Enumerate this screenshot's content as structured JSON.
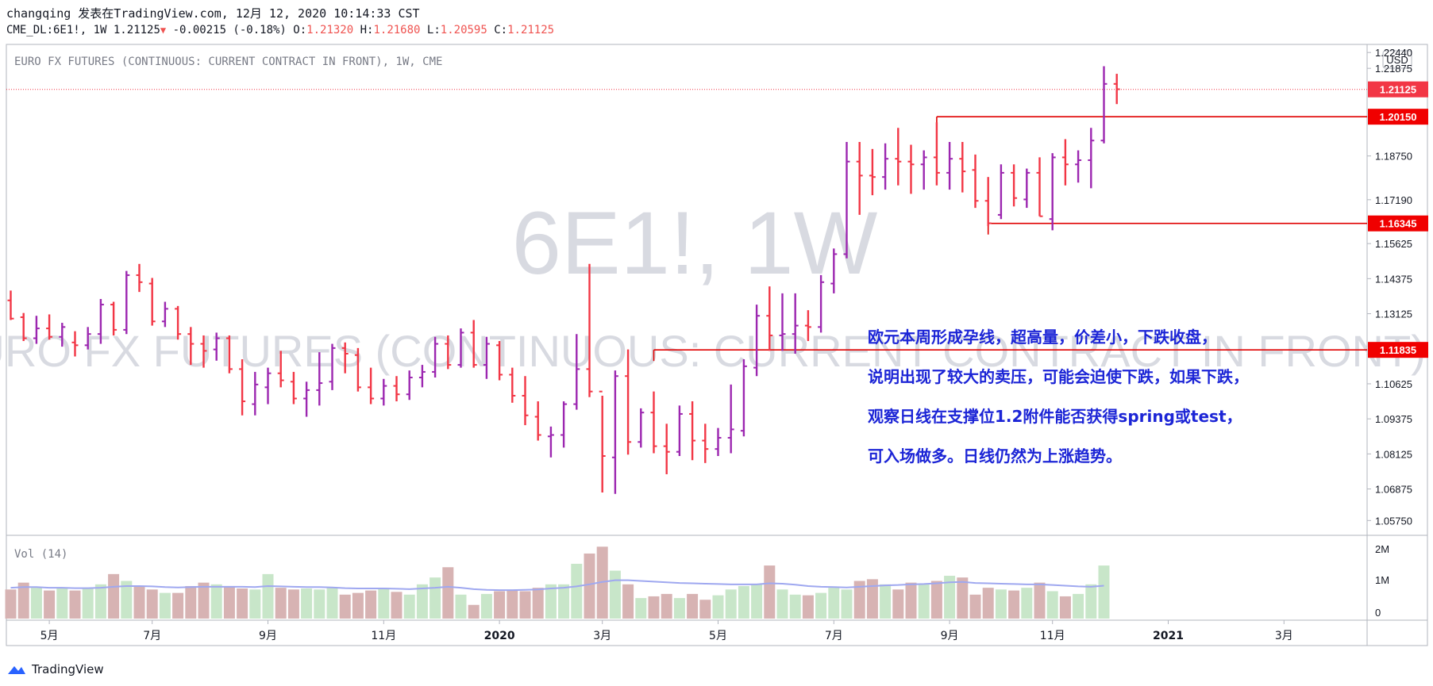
{
  "header": {
    "publish_line": "changqing 发表在TradingView.com, 12月 12, 2020 10:14:33 CST",
    "symbol": "CME_DL:6E1!, 1W",
    "last": "1.21125",
    "change": "-0.00215 (-0.18%)",
    "o_label": "O:",
    "o_value": "1.21320",
    "h_label": "H:",
    "h_value": "1.21680",
    "l_label": "L:",
    "l_value": "1.20595",
    "c_label": "C:",
    "c_value": "1.21125"
  },
  "chart_title": "EURO FX FUTURES (CONTINUOUS: CURRENT CONTRACT IN FRONT), 1W, CME",
  "watermark": {
    "symbol": "6E1!, 1W",
    "desc": "EURO FX FUTURES (CONTINUOUS: CURRENT CONTRACT IN FRONT)"
  },
  "currency": "USD",
  "annotation": [
    "欧元本周形成孕线，超高量，价差小，下跌收盘，",
    "说明出现了较大的卖压，可能会迫使下跌，如果下跌，",
    "观察日线在支撑位1.2附件能否获得spring或test，",
    "可入场做多。日线仍然为上涨趋势。"
  ],
  "vol_label": "Vol (14)",
  "vol_ticks": [
    "2M",
    "1M",
    "0"
  ],
  "brand": "TradingView",
  "colors": {
    "up": "#9c27b0",
    "down": "#f23645",
    "level": "#e00000",
    "vol_up": "#c8e6c9",
    "vol_down": "#d7b3b3",
    "ma": "#9fa8f0"
  },
  "chart_data": {
    "type": "bar",
    "price_ticks": [
      "1.22440",
      "1.21875",
      "1.20150",
      "1.18750",
      "1.17190",
      "1.15625",
      "1.14375",
      "1.13125",
      "1.11835",
      "1.10625",
      "1.09375",
      "1.08125",
      "1.06875",
      "1.05750"
    ],
    "price_tick_values": [
      1.2244,
      1.21875,
      1.2015,
      1.1875,
      1.1719,
      1.15625,
      1.14375,
      1.13125,
      1.11835,
      1.10625,
      1.09375,
      1.08125,
      1.06875,
      1.0575
    ],
    "price_labels": [
      {
        "text": "1.21125",
        "value": 1.21125,
        "style": "last"
      },
      {
        "text": "1.20150",
        "value": 1.2015,
        "style": "level"
      },
      {
        "text": "1.16345",
        "value": 1.16345,
        "style": "level"
      },
      {
        "text": "1.11835",
        "value": 1.11835,
        "style": "level"
      }
    ],
    "levels": [
      {
        "value": 1.2015,
        "from_week": 72
      },
      {
        "value": 1.16345,
        "from_week": 76
      },
      {
        "value": 1.11835,
        "from_week": 50
      }
    ],
    "last_price": 1.21125,
    "x_ticks": [
      {
        "label": "5月",
        "week": 3
      },
      {
        "label": "7月",
        "week": 11
      },
      {
        "label": "9月",
        "week": 20
      },
      {
        "label": "11月",
        "week": 29
      },
      {
        "label": "2020",
        "week": 38
      },
      {
        "label": "3月",
        "week": 46
      },
      {
        "label": "5月",
        "week": 55
      },
      {
        "label": "7月",
        "week": 64
      },
      {
        "label": "9月",
        "week": 73
      },
      {
        "label": "11月",
        "week": 81
      },
      {
        "label": "2021",
        "week": 90
      },
      {
        "label": "3月",
        "week": 99
      }
    ],
    "ohlc": [
      [
        1.136,
        1.1395,
        1.129,
        1.1295
      ],
      [
        1.13,
        1.1315,
        1.1215,
        1.1225
      ],
      [
        1.1225,
        1.1305,
        1.1205,
        1.126
      ],
      [
        1.126,
        1.131,
        1.122,
        1.123
      ],
      [
        1.123,
        1.128,
        1.1195,
        1.1265
      ],
      [
        1.121,
        1.125,
        1.116,
        1.12
      ],
      [
        1.12,
        1.1265,
        1.1185,
        1.124
      ],
      [
        1.124,
        1.1365,
        1.1205,
        1.1345
      ],
      [
        1.1345,
        1.1355,
        1.1235,
        1.1255
      ],
      [
        1.1255,
        1.1465,
        1.124,
        1.145
      ],
      [
        1.145,
        1.149,
        1.139,
        1.1425
      ],
      [
        1.142,
        1.144,
        1.127,
        1.1285
      ],
      [
        1.1285,
        1.1355,
        1.1265,
        1.133
      ],
      [
        1.133,
        1.134,
        1.122,
        1.124
      ],
      [
        1.124,
        1.1265,
        1.113,
        1.1205
      ],
      [
        1.1205,
        1.1235,
        1.112,
        1.118
      ],
      [
        1.1185,
        1.1245,
        1.1145,
        1.1225
      ],
      [
        1.1225,
        1.1235,
        1.11,
        1.1115
      ],
      [
        1.1115,
        1.115,
        1.095,
        1.1
      ],
      [
        1.099,
        1.1105,
        1.095,
        1.106
      ],
      [
        1.105,
        1.112,
        1.099,
        1.11
      ],
      [
        1.11,
        1.118,
        1.105,
        1.1075
      ],
      [
        1.107,
        1.1105,
        1.099,
        1.101
      ],
      [
        1.101,
        1.107,
        1.0945,
        1.104
      ],
      [
        1.104,
        1.1175,
        1.0985,
        1.1065
      ],
      [
        1.107,
        1.1205,
        1.104,
        1.119
      ],
      [
        1.119,
        1.121,
        1.11,
        1.117
      ],
      [
        1.1165,
        1.119,
        1.1035,
        1.105
      ],
      [
        1.105,
        1.112,
        1.099,
        1.101
      ],
      [
        1.101,
        1.108,
        1.0985,
        1.1055
      ],
      [
        1.1055,
        1.109,
        1.1,
        1.1025
      ],
      [
        1.1025,
        1.111,
        1.1005,
        1.1085
      ],
      [
        1.1085,
        1.113,
        1.105,
        1.1105
      ],
      [
        1.1105,
        1.123,
        1.1085,
        1.1205
      ],
      [
        1.1205,
        1.1235,
        1.1115,
        1.113
      ],
      [
        1.113,
        1.126,
        1.112,
        1.1245
      ],
      [
        1.1245,
        1.129,
        1.112,
        1.113
      ],
      [
        1.113,
        1.123,
        1.108,
        1.1205
      ],
      [
        1.12,
        1.1215,
        1.1075,
        1.1095
      ],
      [
        1.1095,
        1.112,
        1.0995,
        1.102
      ],
      [
        1.102,
        1.109,
        1.0915,
        1.095
      ],
      [
        1.0945,
        1.1,
        1.086,
        1.088
      ],
      [
        1.0875,
        1.091,
        1.08,
        1.088
      ],
      [
        1.088,
        1.1,
        1.0835,
        1.099
      ],
      [
        1.099,
        1.124,
        1.097,
        1.1115
      ],
      [
        1.1115,
        1.149,
        1.1015,
        1.1035
      ],
      [
        1.1035,
        1.102,
        1.0675,
        1.0805
      ],
      [
        1.08,
        1.111,
        1.067,
        1.109
      ],
      [
        1.109,
        1.1185,
        1.081,
        1.0855
      ],
      [
        1.0855,
        1.0975,
        1.0835,
        1.096
      ],
      [
        1.096,
        1.1035,
        1.0815,
        1.084
      ],
      [
        1.084,
        1.092,
        1.074,
        1.082
      ],
      [
        1.082,
        1.0985,
        1.0805,
        1.0955
      ],
      [
        1.0955,
        1.1,
        1.079,
        1.086
      ],
      [
        1.086,
        1.092,
        1.078,
        1.083
      ],
      [
        1.083,
        1.0905,
        1.0805,
        1.087
      ],
      [
        1.087,
        1.106,
        1.0815,
        1.09
      ],
      [
        1.0895,
        1.115,
        1.0875,
        1.1125
      ],
      [
        1.112,
        1.1345,
        1.109,
        1.1305
      ],
      [
        1.1305,
        1.141,
        1.118,
        1.1235
      ],
      [
        1.1235,
        1.1385,
        1.118,
        1.124
      ],
      [
        1.124,
        1.1385,
        1.117,
        1.127
      ],
      [
        1.127,
        1.1325,
        1.1215,
        1.1265
      ],
      [
        1.1265,
        1.145,
        1.1245,
        1.1425
      ],
      [
        1.142,
        1.1545,
        1.1385,
        1.1525
      ],
      [
        1.1525,
        1.1925,
        1.151,
        1.1855
      ],
      [
        1.1855,
        1.1925,
        1.1665,
        1.1805
      ],
      [
        1.1805,
        1.19,
        1.1735,
        1.18
      ],
      [
        1.18,
        1.192,
        1.1755,
        1.1865
      ],
      [
        1.1865,
        1.1975,
        1.177,
        1.1855
      ],
      [
        1.1855,
        1.1915,
        1.174,
        1.1845
      ],
      [
        1.1845,
        1.1895,
        1.1755,
        1.187
      ],
      [
        1.187,
        1.1995,
        1.177,
        1.1815
      ],
      [
        1.1815,
        1.1925,
        1.1755,
        1.1865
      ],
      [
        1.1865,
        1.1925,
        1.1745,
        1.182
      ],
      [
        1.1825,
        1.188,
        1.169,
        1.1715
      ],
      [
        1.1715,
        1.18,
        1.1625,
        1.1635
      ],
      [
        1.1665,
        1.1845,
        1.165,
        1.1815
      ],
      [
        1.1815,
        1.1845,
        1.1695,
        1.1725
      ],
      [
        1.172,
        1.183,
        1.169,
        1.1815
      ],
      [
        1.1815,
        1.187,
        1.166,
        1.166
      ],
      [
        1.165,
        1.1885,
        1.161,
        1.187
      ],
      [
        1.187,
        1.1935,
        1.177,
        1.1845
      ],
      [
        1.1845,
        1.1895,
        1.178,
        1.186
      ],
      [
        1.186,
        1.1975,
        1.176,
        1.193
      ],
      [
        1.193,
        1.2195,
        1.192,
        1.2132
      ],
      [
        1.2132,
        1.2168,
        1.206,
        1.2113
      ]
    ],
    "volume_millions": [
      0.85,
      1.05,
      0.9,
      0.82,
      0.88,
      0.82,
      0.9,
      1.0,
      1.3,
      1.1,
      0.95,
      0.85,
      0.75,
      0.75,
      0.95,
      1.05,
      1.0,
      0.95,
      0.88,
      0.85,
      1.3,
      0.9,
      0.85,
      0.88,
      0.85,
      0.9,
      0.7,
      0.75,
      0.82,
      0.9,
      0.78,
      0.7,
      1.0,
      1.2,
      1.5,
      0.7,
      0.4,
      0.72,
      0.8,
      0.82,
      0.8,
      0.9,
      1.0,
      1.0,
      1.6,
      1.9,
      2.1,
      1.4,
      1.0,
      0.6,
      0.65,
      0.72,
      0.6,
      0.72,
      0.55,
      0.68,
      0.85,
      0.95,
      1.0,
      1.55,
      0.85,
      0.7,
      0.68,
      0.75,
      0.9,
      0.85,
      1.1,
      1.15,
      1.0,
      0.85,
      1.05,
      1.0,
      1.1,
      1.25,
      1.2,
      0.7,
      0.9,
      0.85,
      0.82,
      0.9,
      1.05,
      0.8,
      0.65,
      0.72,
      1.0,
      1.55
    ],
    "volume_ma_millions": [
      0.9,
      0.92,
      0.92,
      0.9,
      0.9,
      0.89,
      0.89,
      0.9,
      0.93,
      0.95,
      0.95,
      0.94,
      0.92,
      0.91,
      0.92,
      0.93,
      0.93,
      0.93,
      0.93,
      0.92,
      0.95,
      0.94,
      0.93,
      0.92,
      0.92,
      0.91,
      0.89,
      0.88,
      0.88,
      0.88,
      0.87,
      0.86,
      0.88,
      0.9,
      0.93,
      0.9,
      0.86,
      0.84,
      0.83,
      0.83,
      0.84,
      0.85,
      0.88,
      0.9,
      0.94,
      1.0,
      1.07,
      1.12,
      1.12,
      1.1,
      1.08,
      1.06,
      1.04,
      1.03,
      1.02,
      1.01,
      1.0,
      1.0,
      1.0,
      1.03,
      1.02,
      0.99,
      0.95,
      0.93,
      0.92,
      0.91,
      0.93,
      0.95,
      0.97,
      0.98,
      1.0,
      1.01,
      1.03,
      1.06,
      1.07,
      1.04,
      1.03,
      1.02,
      1.01,
      1.0,
      1.0,
      0.98,
      0.96,
      0.94,
      0.93,
      0.96
    ],
    "volume_ylim": [
      0,
      2.2
    ],
    "price_ylim": [
      1.0525,
      1.227
    ]
  }
}
